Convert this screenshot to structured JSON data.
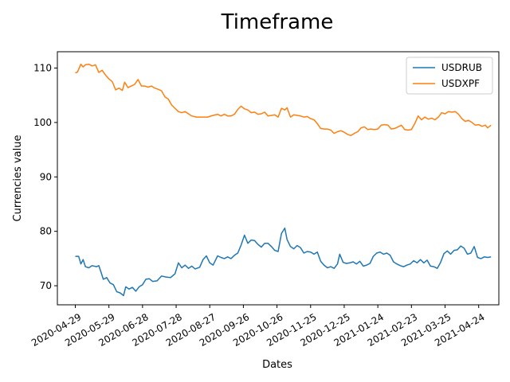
{
  "chart_data": {
    "type": "line",
    "title": "Timeframe",
    "xlabel": "Dates",
    "ylabel": "Currencies value",
    "ylim": [
      66.5,
      113.0
    ],
    "xlim": [
      "2020-04-13",
      "2021-05-12"
    ],
    "yticks": [
      70,
      80,
      90,
      100,
      110
    ],
    "xticks": [
      "2020-04-29",
      "2020-05-29",
      "2020-06-28",
      "2020-07-28",
      "2020-08-27",
      "2020-09-26",
      "2020-10-26",
      "2020-11-25",
      "2020-12-25",
      "2021-01-24",
      "2021-02-23",
      "2021-03-25",
      "2021-04-24"
    ],
    "grid": false,
    "legend_position": "top-right",
    "series": [
      {
        "name": "USDRUB",
        "color": "#1f77b4",
        "points": [
          [
            "2020-04-29",
            75.4
          ],
          [
            "2020-05-02",
            75.4
          ],
          [
            "2020-05-04",
            74.0
          ],
          [
            "2020-05-06",
            74.8
          ],
          [
            "2020-05-08",
            73.5
          ],
          [
            "2020-05-11",
            73.3
          ],
          [
            "2020-05-14",
            73.7
          ],
          [
            "2020-05-18",
            73.5
          ],
          [
            "2020-05-20",
            73.7
          ],
          [
            "2020-05-22",
            72.5
          ],
          [
            "2020-05-24",
            71.2
          ],
          [
            "2020-05-27",
            71.5
          ],
          [
            "2020-05-30",
            70.5
          ],
          [
            "2020-06-02",
            70.2
          ],
          [
            "2020-06-05",
            68.9
          ],
          [
            "2020-06-08",
            68.7
          ],
          [
            "2020-06-11",
            68.2
          ],
          [
            "2020-06-13",
            69.8
          ],
          [
            "2020-06-16",
            69.4
          ],
          [
            "2020-06-19",
            69.7
          ],
          [
            "2020-06-22",
            69.0
          ],
          [
            "2020-06-25",
            69.8
          ],
          [
            "2020-06-28",
            70.2
          ],
          [
            "2020-07-01",
            71.2
          ],
          [
            "2020-07-04",
            71.3
          ],
          [
            "2020-07-07",
            70.8
          ],
          [
            "2020-07-11",
            70.9
          ],
          [
            "2020-07-15",
            71.8
          ],
          [
            "2020-07-19",
            71.6
          ],
          [
            "2020-07-23",
            71.5
          ],
          [
            "2020-07-27",
            72.2
          ],
          [
            "2020-07-30",
            74.2
          ],
          [
            "2020-08-02",
            73.3
          ],
          [
            "2020-08-05",
            73.8
          ],
          [
            "2020-08-08",
            73.2
          ],
          [
            "2020-08-11",
            73.6
          ],
          [
            "2020-08-14",
            73.1
          ],
          [
            "2020-08-18",
            73.4
          ],
          [
            "2020-08-21",
            74.8
          ],
          [
            "2020-08-24",
            75.5
          ],
          [
            "2020-08-27",
            74.2
          ],
          [
            "2020-08-30",
            73.8
          ],
          [
            "2020-09-03",
            75.5
          ],
          [
            "2020-09-06",
            75.2
          ],
          [
            "2020-09-09",
            75.0
          ],
          [
            "2020-09-12",
            75.3
          ],
          [
            "2020-09-15",
            75.0
          ],
          [
            "2020-09-18",
            75.6
          ],
          [
            "2020-09-21",
            76.0
          ],
          [
            "2020-09-24",
            77.5
          ],
          [
            "2020-09-27",
            79.3
          ],
          [
            "2020-09-30",
            77.8
          ],
          [
            "2020-10-03",
            78.4
          ],
          [
            "2020-10-06",
            78.3
          ],
          [
            "2020-10-09",
            77.6
          ],
          [
            "2020-10-12",
            77.1
          ],
          [
            "2020-10-15",
            77.8
          ],
          [
            "2020-10-18",
            77.8
          ],
          [
            "2020-10-21",
            77.2
          ],
          [
            "2020-10-24",
            76.5
          ],
          [
            "2020-10-27",
            76.3
          ],
          [
            "2020-10-30",
            79.6
          ],
          [
            "2020-11-02",
            80.6
          ],
          [
            "2020-11-04",
            78.5
          ],
          [
            "2020-11-07",
            77.2
          ],
          [
            "2020-11-10",
            76.8
          ],
          [
            "2020-11-13",
            77.4
          ],
          [
            "2020-11-16",
            77.0
          ],
          [
            "2020-11-19",
            76.0
          ],
          [
            "2020-11-22",
            76.3
          ],
          [
            "2020-11-25",
            76.2
          ],
          [
            "2020-11-28",
            75.8
          ],
          [
            "2020-12-01",
            76.2
          ],
          [
            "2020-12-04",
            74.5
          ],
          [
            "2020-12-07",
            73.8
          ],
          [
            "2020-12-10",
            73.3
          ],
          [
            "2020-12-13",
            73.5
          ],
          [
            "2020-12-16",
            73.2
          ],
          [
            "2020-12-19",
            74.0
          ],
          [
            "2020-12-21",
            75.8
          ],
          [
            "2020-12-24",
            74.3
          ],
          [
            "2020-12-27",
            74.1
          ],
          [
            "2020-12-30",
            74.2
          ],
          [
            "2021-01-02",
            74.4
          ],
          [
            "2021-01-05",
            74.0
          ],
          [
            "2021-01-08",
            74.5
          ],
          [
            "2021-01-11",
            73.6
          ],
          [
            "2021-01-14",
            73.8
          ],
          [
            "2021-01-17",
            74.1
          ],
          [
            "2021-01-20",
            75.4
          ],
          [
            "2021-01-23",
            76.0
          ],
          [
            "2021-01-26",
            76.2
          ],
          [
            "2021-01-29",
            75.8
          ],
          [
            "2021-02-01",
            76.0
          ],
          [
            "2021-02-04",
            75.6
          ],
          [
            "2021-02-07",
            74.4
          ],
          [
            "2021-02-10",
            74.0
          ],
          [
            "2021-02-13",
            73.7
          ],
          [
            "2021-02-16",
            73.5
          ],
          [
            "2021-02-19",
            73.8
          ],
          [
            "2021-02-22",
            74.0
          ],
          [
            "2021-02-25",
            74.6
          ],
          [
            "2021-02-28",
            74.2
          ],
          [
            "2021-03-03",
            74.8
          ],
          [
            "2021-03-06",
            74.2
          ],
          [
            "2021-03-09",
            74.7
          ],
          [
            "2021-03-12",
            73.6
          ],
          [
            "2021-03-15",
            73.5
          ],
          [
            "2021-03-18",
            73.2
          ],
          [
            "2021-03-21",
            74.3
          ],
          [
            "2021-03-24",
            75.9
          ],
          [
            "2021-03-27",
            76.4
          ],
          [
            "2021-03-30",
            75.8
          ],
          [
            "2021-04-02",
            76.5
          ],
          [
            "2021-04-05",
            76.6
          ],
          [
            "2021-04-08",
            77.3
          ],
          [
            "2021-04-11",
            76.9
          ],
          [
            "2021-04-14",
            75.8
          ],
          [
            "2021-04-17",
            76.0
          ],
          [
            "2021-04-20",
            77.2
          ],
          [
            "2021-04-23",
            75.2
          ],
          [
            "2021-04-26",
            75.0
          ],
          [
            "2021-04-29",
            75.3
          ],
          [
            "2021-05-02",
            75.2
          ],
          [
            "2021-05-05",
            75.3
          ]
        ]
      },
      {
        "name": "USDXPF",
        "color": "#ff7f0e",
        "points": [
          [
            "2020-04-29",
            109.1
          ],
          [
            "2020-05-01",
            109.3
          ],
          [
            "2020-05-04",
            110.7
          ],
          [
            "2020-05-06",
            110.2
          ],
          [
            "2020-05-08",
            110.6
          ],
          [
            "2020-05-11",
            110.7
          ],
          [
            "2020-05-14",
            110.4
          ],
          [
            "2020-05-17",
            110.6
          ],
          [
            "2020-05-20",
            109.2
          ],
          [
            "2020-05-23",
            109.6
          ],
          [
            "2020-05-26",
            108.7
          ],
          [
            "2020-05-29",
            108.0
          ],
          [
            "2020-06-01",
            107.5
          ],
          [
            "2020-06-04",
            106.0
          ],
          [
            "2020-06-07",
            106.3
          ],
          [
            "2020-06-10",
            105.9
          ],
          [
            "2020-06-12",
            107.4
          ],
          [
            "2020-06-15",
            106.4
          ],
          [
            "2020-06-18",
            106.7
          ],
          [
            "2020-06-21",
            107.0
          ],
          [
            "2020-06-24",
            107.9
          ],
          [
            "2020-06-27",
            106.7
          ],
          [
            "2020-06-30",
            106.7
          ],
          [
            "2020-07-03",
            106.5
          ],
          [
            "2020-07-06",
            106.7
          ],
          [
            "2020-07-09",
            106.3
          ],
          [
            "2020-07-12",
            106.1
          ],
          [
            "2020-07-15",
            105.8
          ],
          [
            "2020-07-18",
            104.7
          ],
          [
            "2020-07-21",
            104.3
          ],
          [
            "2020-07-24",
            103.2
          ],
          [
            "2020-07-27",
            102.6
          ],
          [
            "2020-07-30",
            102.0
          ],
          [
            "2020-08-02",
            101.8
          ],
          [
            "2020-08-05",
            102.0
          ],
          [
            "2020-08-08",
            101.6
          ],
          [
            "2020-08-11",
            101.2
          ],
          [
            "2020-08-15",
            101.0
          ],
          [
            "2020-08-20",
            101.0
          ],
          [
            "2020-08-25",
            101.0
          ],
          [
            "2020-08-30",
            101.3
          ],
          [
            "2020-09-03",
            101.5
          ],
          [
            "2020-09-06",
            101.2
          ],
          [
            "2020-09-09",
            101.5
          ],
          [
            "2020-09-12",
            101.2
          ],
          [
            "2020-09-15",
            101.2
          ],
          [
            "2020-09-18",
            101.5
          ],
          [
            "2020-09-21",
            102.4
          ],
          [
            "2020-09-24",
            103.0
          ],
          [
            "2020-09-27",
            102.5
          ],
          [
            "2020-09-30",
            102.3
          ],
          [
            "2020-10-03",
            101.8
          ],
          [
            "2020-10-06",
            101.9
          ],
          [
            "2020-10-09",
            101.5
          ],
          [
            "2020-10-12",
            101.6
          ],
          [
            "2020-10-15",
            101.9
          ],
          [
            "2020-10-18",
            101.2
          ],
          [
            "2020-10-21",
            101.3
          ],
          [
            "2020-10-24",
            101.4
          ],
          [
            "2020-10-27",
            101.0
          ],
          [
            "2020-10-30",
            102.6
          ],
          [
            "2020-11-02",
            102.3
          ],
          [
            "2020-11-04",
            102.7
          ],
          [
            "2020-11-07",
            101.0
          ],
          [
            "2020-11-10",
            101.4
          ],
          [
            "2020-11-13",
            101.3
          ],
          [
            "2020-11-16",
            101.2
          ],
          [
            "2020-11-19",
            101.0
          ],
          [
            "2020-11-22",
            101.1
          ],
          [
            "2020-11-25",
            100.7
          ],
          [
            "2020-11-28",
            100.5
          ],
          [
            "2020-12-01",
            99.8
          ],
          [
            "2020-12-04",
            98.9
          ],
          [
            "2020-12-07",
            98.8
          ],
          [
            "2020-12-10",
            98.8
          ],
          [
            "2020-12-13",
            98.6
          ],
          [
            "2020-12-16",
            98.0
          ],
          [
            "2020-12-19",
            98.3
          ],
          [
            "2020-12-22",
            98.5
          ],
          [
            "2020-12-25",
            98.2
          ],
          [
            "2020-12-28",
            97.8
          ],
          [
            "2020-12-31",
            97.6
          ],
          [
            "2021-01-03",
            98.0
          ],
          [
            "2021-01-06",
            98.3
          ],
          [
            "2021-01-09",
            99.0
          ],
          [
            "2021-01-12",
            99.2
          ],
          [
            "2021-01-15",
            98.7
          ],
          [
            "2021-01-18",
            98.8
          ],
          [
            "2021-01-21",
            98.7
          ],
          [
            "2021-01-24",
            98.8
          ],
          [
            "2021-01-27",
            99.5
          ],
          [
            "2021-01-30",
            99.6
          ],
          [
            "2021-02-02",
            99.5
          ],
          [
            "2021-02-05",
            98.8
          ],
          [
            "2021-02-08",
            98.9
          ],
          [
            "2021-02-11",
            99.2
          ],
          [
            "2021-02-14",
            99.5
          ],
          [
            "2021-02-17",
            98.7
          ],
          [
            "2021-02-20",
            98.6
          ],
          [
            "2021-02-23",
            98.7
          ],
          [
            "2021-02-26",
            99.8
          ],
          [
            "2021-03-01",
            101.2
          ],
          [
            "2021-03-04",
            100.5
          ],
          [
            "2021-03-07",
            101.0
          ],
          [
            "2021-03-10",
            100.6
          ],
          [
            "2021-03-13",
            100.8
          ],
          [
            "2021-03-16",
            100.5
          ],
          [
            "2021-03-19",
            101.0
          ],
          [
            "2021-03-22",
            101.8
          ],
          [
            "2021-03-25",
            101.6
          ],
          [
            "2021-03-28",
            102.0
          ],
          [
            "2021-03-31",
            101.9
          ],
          [
            "2021-04-03",
            102.0
          ],
          [
            "2021-04-06",
            101.5
          ],
          [
            "2021-04-09",
            100.7
          ],
          [
            "2021-04-12",
            100.2
          ],
          [
            "2021-04-15",
            100.4
          ],
          [
            "2021-04-18",
            100.0
          ],
          [
            "2021-04-21",
            99.5
          ],
          [
            "2021-04-24",
            99.6
          ],
          [
            "2021-04-27",
            99.3
          ],
          [
            "2021-04-30",
            99.5
          ],
          [
            "2021-05-02",
            99.0
          ],
          [
            "2021-05-05",
            99.5
          ]
        ]
      }
    ]
  }
}
